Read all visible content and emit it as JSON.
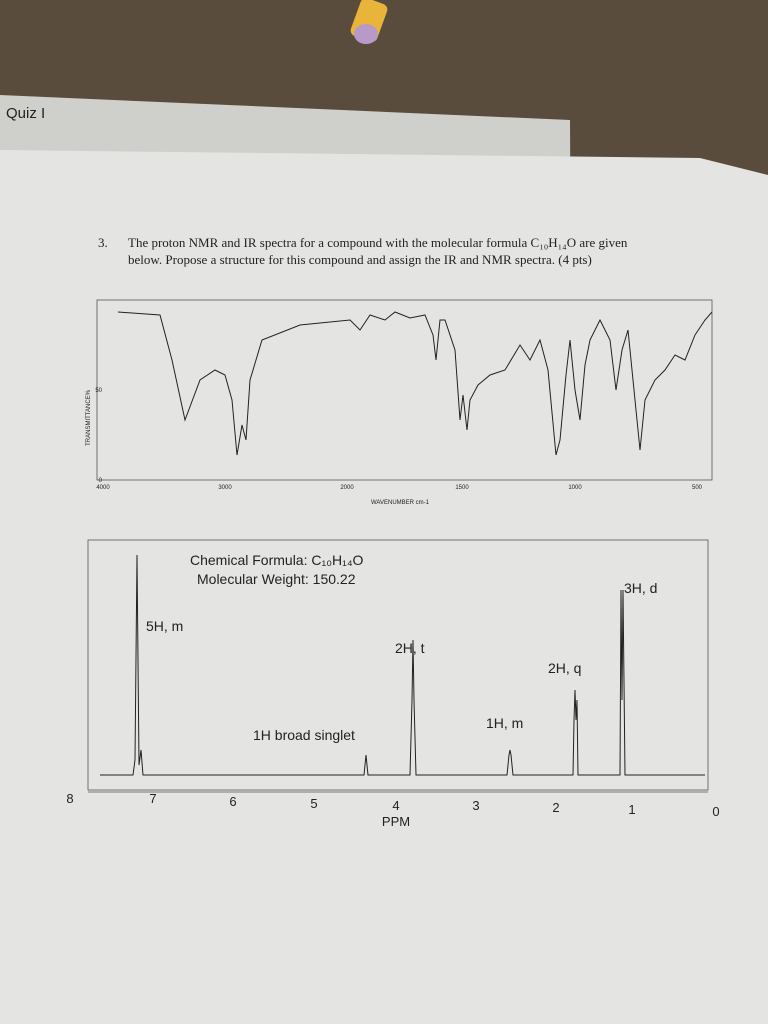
{
  "header": {
    "title": "Quiz I"
  },
  "question": {
    "number": "3.",
    "lines": [
      "The proton NMR and IR spectra for a compound with the molecular formula C₁₀H₁₄O are given",
      "below.  Propose a structure for this compound and assign the IR and NMR spectra.  (4 pts)"
    ]
  },
  "ir_spectrum": {
    "y_label": "TRANSMITTANCE%",
    "y_ticks": [
      "50",
      "0"
    ],
    "x_ticks": [
      "4000",
      "3000",
      "2000",
      "1500",
      "1000",
      "500"
    ],
    "x_label": "WAVENUMBER cm-1"
  },
  "nmr_spectrum": {
    "formula": "Chemical Formula: C₁₀H₁₄O",
    "weight": "Molecular Weight: 150.22",
    "peak_labels": [
      "5H, m",
      "1H broad singlet",
      "2H, t",
      "1H, m",
      "2H, q",
      "3H, d"
    ],
    "x_ticks": [
      "8",
      "7",
      "6",
      "5",
      "4",
      "3",
      "2",
      "1",
      "0"
    ],
    "x_label": "PPM"
  }
}
